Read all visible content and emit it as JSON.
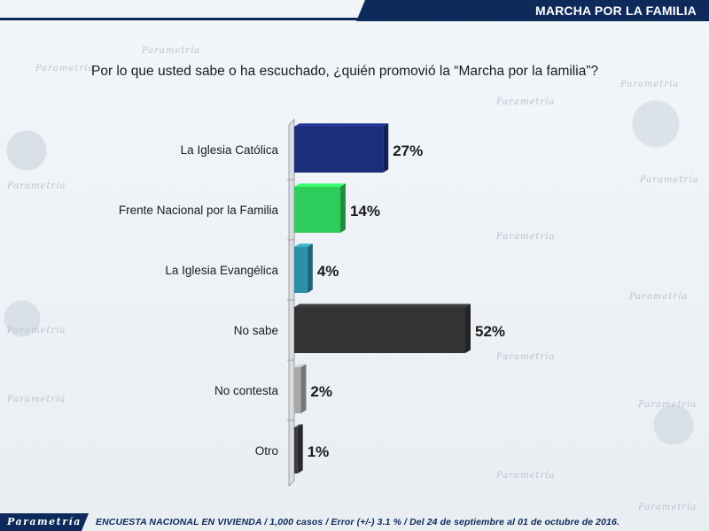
{
  "header": {
    "title": "MARCHA POR LA FAMILIA"
  },
  "question": "Por lo que usted sabe o ha escuchado, ¿quién promovió la “Marcha por la familia”?",
  "watermark": "Parametría",
  "footer": {
    "logo": "Parametría",
    "note": "ENCUESTA NACIONAL EN VIVIENDA / 1,000 casos / Error (+/-) 3.1 % / Del 24 de septiembre al 01 de octubre de 2016."
  },
  "chart_data": {
    "type": "bar",
    "orientation": "horizontal",
    "title": "",
    "xlabel": "",
    "ylabel": "",
    "categories": [
      "La Iglesia Católica",
      "Frente Nacional por la Familia",
      "La Iglesia Evangélica",
      "No sabe",
      "No contesta",
      "Otro"
    ],
    "values": [
      27,
      14,
      4,
      52,
      2,
      1
    ],
    "value_labels": [
      "27%",
      "14%",
      "4%",
      "52%",
      "2%",
      "1%"
    ],
    "colors": [
      "#1a2e7a",
      "#2ecc5a",
      "#2e8fa8",
      "#333333",
      "#a8a8a8",
      "#3a3a3a"
    ],
    "xlim": [
      0,
      56
    ],
    "grid": false,
    "legend": "none"
  }
}
